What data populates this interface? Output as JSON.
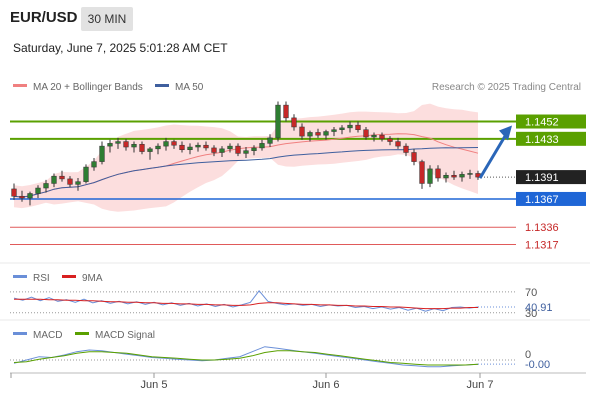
{
  "header": {
    "pair": "EUR/USD",
    "timeframe": "30 MIN",
    "datetime": "Saturday, June 7, 2025 5:01:28 AM CET"
  },
  "credit": "Research © 2025 Trading Central",
  "colors": {
    "candle_up": "#2e7d32",
    "candle_down": "#c62828",
    "bollinger_fill": "#fbd6d6",
    "ma20": "#f08080",
    "ma50": "#3f5f9e",
    "resistance": "#5aa000",
    "pivot": "#1f66d6",
    "support": "#e05a5a",
    "last_price_bg": "#222222",
    "arrow": "#2a66b8",
    "rsi": "#6a8fd8",
    "rsi_ma": "#d82020",
    "macd": "#6a8fd8",
    "macd_signal": "#5aa000"
  },
  "chart_data": [
    {
      "type": "candlestick",
      "legend": [
        {
          "name": "MA 20 + Bollinger Bands",
          "color": "#f08080"
        },
        {
          "name": "MA 50",
          "color": "#3f5f9e"
        }
      ],
      "x_ticks": [
        "Jun 5",
        "Jun 6",
        "Jun 7"
      ],
      "ylim": [
        1.13,
        1.148
      ],
      "levels": [
        {
          "value": 1.1452,
          "label": "1.1452",
          "kind": "resistance"
        },
        {
          "value": 1.1433,
          "label": "1.1433",
          "kind": "resistance"
        },
        {
          "value": 1.1391,
          "label": "1.1391",
          "kind": "last"
        },
        {
          "value": 1.1367,
          "label": "1.1367",
          "kind": "pivot"
        },
        {
          "value": 1.1336,
          "label": "1.1336",
          "kind": "support"
        },
        {
          "value": 1.1317,
          "label": "1.1317",
          "kind": "support"
        }
      ],
      "last_price": 1.1391,
      "forecast_target": 1.1452,
      "candles": [
        [
          1.1378,
          1.1384,
          1.1366,
          1.137
        ],
        [
          1.137,
          1.1376,
          1.1364,
          1.1368
        ],
        [
          1.1368,
          1.1375,
          1.136,
          1.1373
        ],
        [
          1.1373,
          1.1382,
          1.1368,
          1.1379
        ],
        [
          1.1379,
          1.1388,
          1.1374,
          1.1384
        ],
        [
          1.1384,
          1.1395,
          1.138,
          1.1392
        ],
        [
          1.1392,
          1.1398,
          1.1386,
          1.1389
        ],
        [
          1.1389,
          1.1392,
          1.138,
          1.1383
        ],
        [
          1.1383,
          1.139,
          1.1376,
          1.1386
        ],
        [
          1.1386,
          1.1405,
          1.1384,
          1.1402
        ],
        [
          1.1402,
          1.1412,
          1.1398,
          1.1408
        ],
        [
          1.1408,
          1.143,
          1.1405,
          1.1425
        ],
        [
          1.1425,
          1.1432,
          1.1418,
          1.1428
        ],
        [
          1.1428,
          1.1434,
          1.1422,
          1.143
        ],
        [
          1.143,
          1.1433,
          1.142,
          1.1424
        ],
        [
          1.1424,
          1.143,
          1.1418,
          1.1427
        ],
        [
          1.1427,
          1.143,
          1.1416,
          1.1419
        ],
        [
          1.1419,
          1.1424,
          1.141,
          1.1422
        ],
        [
          1.1422,
          1.1428,
          1.1416,
          1.1425
        ],
        [
          1.1425,
          1.1434,
          1.142,
          1.143
        ],
        [
          1.143,
          1.1432,
          1.1422,
          1.1426
        ],
        [
          1.1426,
          1.143,
          1.1418,
          1.1421
        ],
        [
          1.1421,
          1.1428,
          1.1416,
          1.1424
        ],
        [
          1.1424,
          1.1429,
          1.1419,
          1.1426
        ],
        [
          1.1426,
          1.143,
          1.142,
          1.1423
        ],
        [
          1.1423,
          1.1426,
          1.1414,
          1.1418
        ],
        [
          1.1418,
          1.1425,
          1.1413,
          1.1422
        ],
        [
          1.1422,
          1.1428,
          1.1418,
          1.1425
        ],
        [
          1.1425,
          1.1428,
          1.1414,
          1.1417
        ],
        [
          1.1417,
          1.1424,
          1.1412,
          1.142
        ],
        [
          1.142,
          1.1426,
          1.1415,
          1.1423
        ],
        [
          1.1423,
          1.1432,
          1.142,
          1.1428
        ],
        [
          1.1428,
          1.1438,
          1.1424,
          1.1434
        ],
        [
          1.1434,
          1.1474,
          1.143,
          1.147
        ],
        [
          1.147,
          1.1474,
          1.1452,
          1.1456
        ],
        [
          1.1456,
          1.146,
          1.1442,
          1.1446
        ],
        [
          1.1446,
          1.145,
          1.1432,
          1.1436
        ],
        [
          1.1436,
          1.1442,
          1.143,
          1.144
        ],
        [
          1.144,
          1.1444,
          1.1434,
          1.1437
        ],
        [
          1.1437,
          1.1443,
          1.1432,
          1.1441
        ],
        [
          1.1441,
          1.1446,
          1.1436,
          1.1443
        ],
        [
          1.1443,
          1.1448,
          1.1438,
          1.1445
        ],
        [
          1.1445,
          1.1452,
          1.144,
          1.1448
        ],
        [
          1.1448,
          1.1452,
          1.144,
          1.1443
        ],
        [
          1.1443,
          1.1446,
          1.1432,
          1.1435
        ],
        [
          1.1435,
          1.144,
          1.143,
          1.1437
        ],
        [
          1.1437,
          1.144,
          1.143,
          1.1433
        ],
        [
          1.1433,
          1.1436,
          1.1426,
          1.143
        ],
        [
          1.143,
          1.1434,
          1.1422,
          1.1425
        ],
        [
          1.1425,
          1.1428,
          1.1414,
          1.1418
        ],
        [
          1.1418,
          1.1422,
          1.1404,
          1.1408
        ],
        [
          1.1408,
          1.141,
          1.1378,
          1.1384
        ],
        [
          1.1384,
          1.1404,
          1.138,
          1.14
        ],
        [
          1.14,
          1.1404,
          1.1386,
          1.139
        ],
        [
          1.139,
          1.1396,
          1.1385,
          1.1393
        ],
        [
          1.1393,
          1.1398,
          1.1388,
          1.1391
        ],
        [
          1.1391,
          1.1397,
          1.1386,
          1.1394
        ],
        [
          1.1394,
          1.1399,
          1.1389,
          1.1395
        ],
        [
          1.1395,
          1.1398,
          1.1388,
          1.1391
        ]
      ]
    },
    {
      "type": "line",
      "legend": [
        {
          "name": "RSI",
          "color": "#6a8fd8"
        },
        {
          "name": "9MA",
          "color": "#d82020"
        }
      ],
      "ylim": [
        20,
        85
      ],
      "levels": [
        {
          "value": 70,
          "label": "70"
        },
        {
          "value": 30,
          "label": "30"
        }
      ],
      "last_value": "40.91",
      "series": [
        {
          "name": "RSI",
          "values": [
            58,
            54,
            60,
            53,
            59,
            52,
            55,
            50,
            56,
            49,
            53,
            48,
            52,
            47,
            51,
            46,
            50,
            45,
            49,
            44,
            48,
            43,
            47,
            42,
            46,
            41,
            45,
            50,
            72,
            52,
            48,
            45,
            47,
            44,
            46,
            42,
            45,
            43,
            44,
            40,
            42,
            38,
            41,
            37,
            40,
            35,
            39,
            33,
            38,
            34,
            40,
            41,
            39,
            41
          ]
        },
        {
          "name": "9MA",
          "values": [
            56,
            56,
            56,
            56,
            55,
            55,
            54,
            54,
            53,
            53,
            52,
            51,
            51,
            50,
            50,
            49,
            49,
            48,
            48,
            47,
            47,
            46,
            46,
            45,
            45,
            44,
            44,
            45,
            48,
            49,
            49,
            48,
            47,
            46,
            46,
            45,
            45,
            44,
            44,
            43,
            43,
            42,
            42,
            41,
            41,
            40,
            39,
            38,
            38,
            38,
            39,
            39,
            40,
            40
          ]
        }
      ]
    },
    {
      "type": "line",
      "legend": [
        {
          "name": "MACD",
          "color": "#6a8fd8"
        },
        {
          "name": "MACD Signal",
          "color": "#5aa000"
        }
      ],
      "ylim": [
        -0.0012,
        0.0024
      ],
      "levels": [
        {
          "value": 0,
          "label": "0"
        }
      ],
      "last_value": "-0.00",
      "series": [
        {
          "name": "MACD",
          "values": [
            -0.0004,
            0.0,
            0.0004,
            0.0003,
            0.0006,
            0.001,
            0.0012,
            0.0011,
            0.0009,
            0.0007,
            0.0005,
            0.0003,
            0.0002,
            0.0001,
            0.0,
            -0.0001,
            0.0,
            0.0002,
            0.0004,
            0.001,
            0.0016,
            0.0014,
            0.0012,
            0.001,
            0.0008,
            0.0006,
            0.0004,
            0.0002,
            0.0,
            -0.0002,
            -0.0004,
            -0.0006,
            -0.0007,
            -0.0008,
            -0.0008,
            -0.0007,
            -0.0006,
            -0.0005
          ]
        },
        {
          "name": "MACD Signal",
          "values": [
            -0.0003,
            -0.0002,
            0.0001,
            0.0003,
            0.0005,
            0.0008,
            0.001,
            0.001,
            0.0009,
            0.0008,
            0.0006,
            0.0004,
            0.0003,
            0.0002,
            0.0001,
            0.0,
            0.0,
            0.0001,
            0.0002,
            0.0005,
            0.0009,
            0.0011,
            0.0011,
            0.001,
            0.0009,
            0.0007,
            0.0005,
            0.0003,
            0.0001,
            -0.0001,
            -0.0003,
            -0.0004,
            -0.0005,
            -0.0006,
            -0.0006,
            -0.0006,
            -0.0006,
            -0.0005
          ]
        }
      ]
    }
  ]
}
